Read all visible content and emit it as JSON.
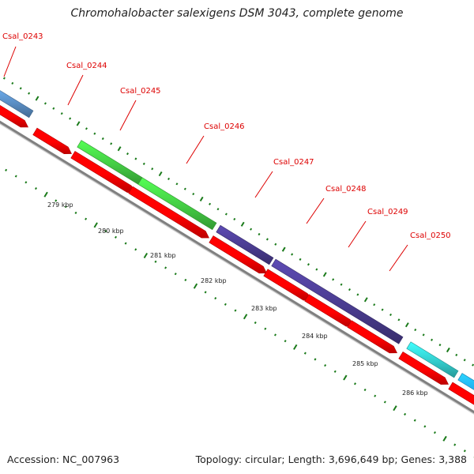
{
  "title": "Chromohalobacter salexigens DSM 3043, complete genome",
  "footer": {
    "accession": "Accession: NC_007963",
    "summary": "Topology: circular; Length: 3,696,649 bp; Genes: 3,388"
  },
  "colors": {
    "label_red": "#dd0000",
    "cds_red": "#ff0000",
    "tick_green": "#1a7a1a",
    "backbone": "#808080",
    "gene_blue": "#5a8ec4",
    "gene_green": "#44cc44",
    "gene_purple": "#4a3c90",
    "gene_cyan": "#33cccc",
    "gene_skyblue": "#22aaee"
  },
  "gene_labels": [
    "Csal_0243",
    "Csal_0244",
    "Csal_0245",
    "Csal_0246",
    "Csal_0247",
    "Csal_0248",
    "Csal_0249",
    "Csal_0250"
  ],
  "kbp_labels": [
    "279 kbp",
    "280 kbp",
    "281 kbp",
    "282 kbp",
    "283 kbp",
    "284 kbp",
    "285 kbp",
    "286 kbp"
  ]
}
